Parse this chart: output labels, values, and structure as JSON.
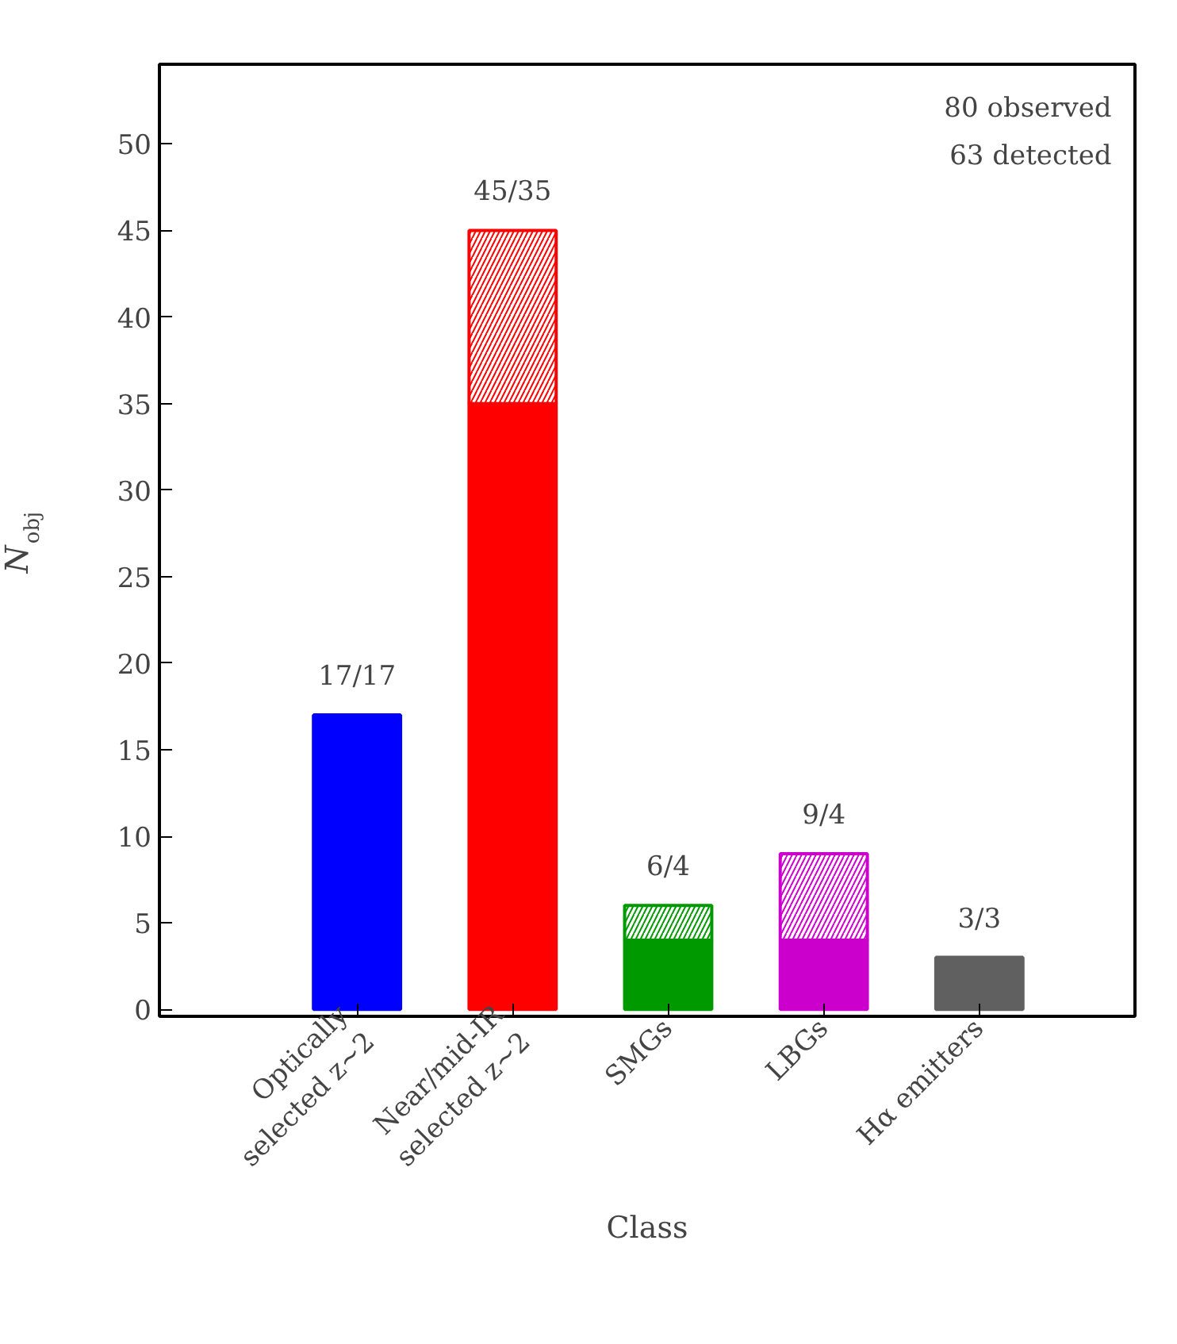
{
  "chart_data": {
    "type": "bar",
    "stacked": true,
    "xlabel": "Class",
    "ylabel": "N$_{obj}$",
    "categories": [
      "Optically\nselected z~2",
      "Near/mid-IR\nselected z~2",
      "SMGs",
      "LBGs",
      "Hα emitters"
    ],
    "series": [
      {
        "colors": [
          "#0000ff",
          "#ff0000",
          "#009900",
          "#cc00cc",
          "#606060"
        ],
        "values": [
          17,
          35,
          4,
          4,
          3
        ]
      },
      {
        "colors": [
          "#0000ff",
          "#ff0000",
          "#009900",
          "#cc00cc",
          "#606060"
        ],
        "values": [
          0,
          10,
          2,
          5,
          0
        ]
      }
    ],
    "annotations": [
      "80 observed",
      "63 detected",
      {
        "text": "17/17",
        "x": "Optically\nselected z~2",
        "y": 17
      },
      {
        "text": "45/35",
        "x": "Near/mid-IR\nselected z~2",
        "y": 45
      },
      {
        "text": "6/4",
        "x": "SMGs",
        "y": 6
      },
      {
        "text": "9/4",
        "x": "LBGs",
        "y": 9
      },
      {
        "text": "3/3",
        "x": "Hα emitters",
        "y": 3
      }
    ],
    "ylim": [
      -0.4,
      54.6
    ],
    "yticks": [
      0,
      5,
      10,
      15,
      20,
      25,
      30,
      35,
      40,
      45,
      50
    ],
    "grid": false
  }
}
